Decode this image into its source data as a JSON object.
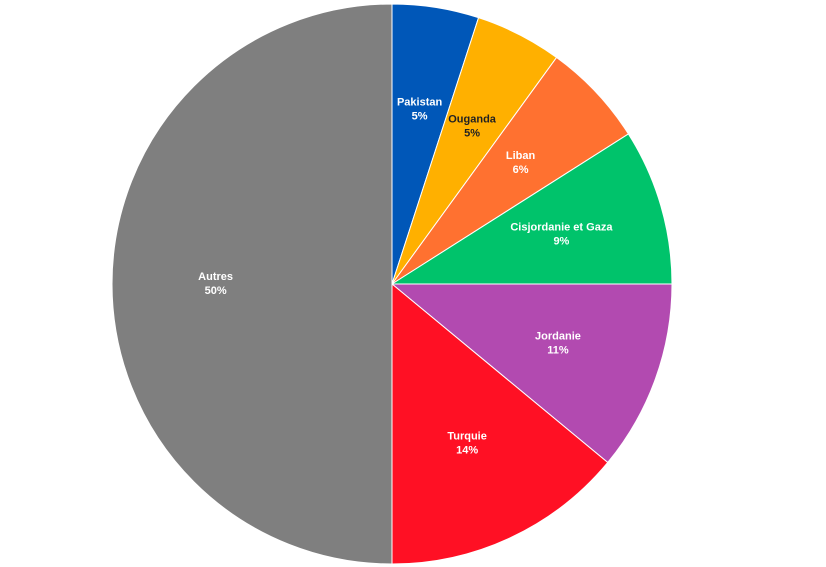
{
  "chart_data": {
    "type": "pie",
    "categories": [
      "Pakistan",
      "Ouganda",
      "Liban",
      "Cisjordanie et Gaza",
      "Jordanie",
      "Turquie",
      "Autres"
    ],
    "values": [
      5,
      5,
      6,
      9,
      11,
      14,
      50
    ],
    "value_labels": [
      "5%",
      "5%",
      "6%",
      "9%",
      "11%",
      "14%",
      "50%"
    ],
    "colors": [
      "#0057b8",
      "#ffb000",
      "#ff7130",
      "#00c36b",
      "#b24ab0",
      "#ff1024",
      "#7f7f7f"
    ]
  }
}
